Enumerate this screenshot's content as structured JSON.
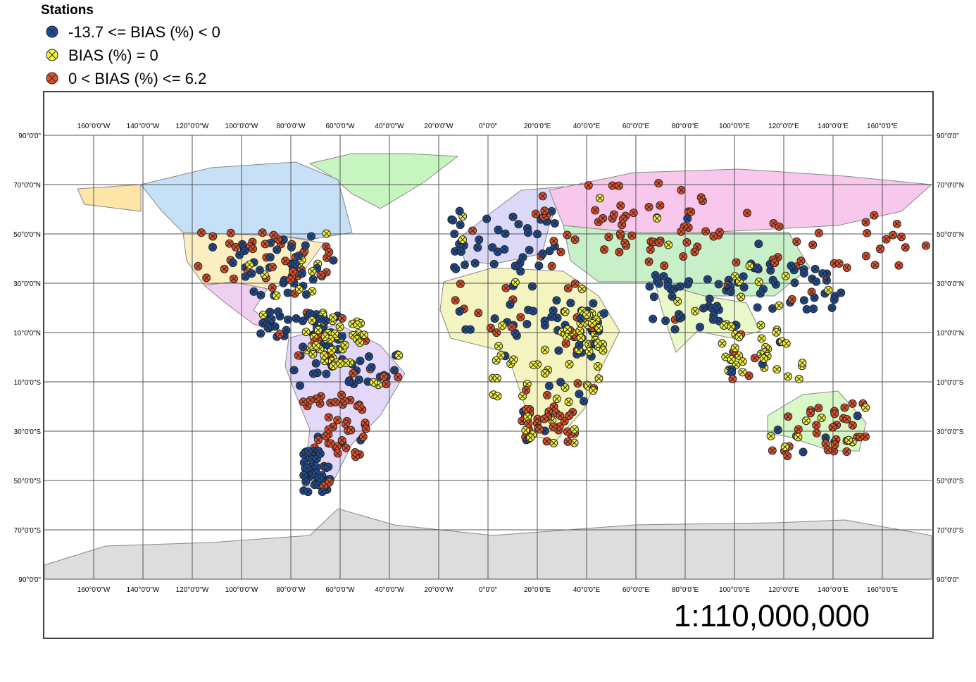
{
  "legend": {
    "title": "Stations",
    "items": [
      {
        "label": "-13.7 <= BIAS (%) < 0",
        "color": "#1f4e9c"
      },
      {
        "label": "BIAS (%) = 0",
        "color": "#f2f23a"
      },
      {
        "label": "0 < BIAS (%) <= 6.2",
        "color": "#e4502a"
      }
    ]
  },
  "graticule": {
    "longitudes": [
      {
        "value": -160,
        "label": "160°0'0\"W"
      },
      {
        "value": -140,
        "label": "140°0'0\"W"
      },
      {
        "value": -120,
        "label": "120°0'0\"W"
      },
      {
        "value": -100,
        "label": "100°0'0\"W"
      },
      {
        "value": -80,
        "label": "80°0'0\"W"
      },
      {
        "value": -60,
        "label": "60°0'0\"W"
      },
      {
        "value": -40,
        "label": "40°0'0\"W"
      },
      {
        "value": -20,
        "label": "20°0'0\"W"
      },
      {
        "value": 0,
        "label": "0°0'0\""
      },
      {
        "value": 20,
        "label": "20°0'0\"E"
      },
      {
        "value": 40,
        "label": "40°0'0\"E"
      },
      {
        "value": 60,
        "label": "60°0'0\"E"
      },
      {
        "value": 80,
        "label": "80°0'0\"E"
      },
      {
        "value": 100,
        "label": "100°0'0\"E"
      },
      {
        "value": 120,
        "label": "120°0'0\"E"
      },
      {
        "value": 140,
        "label": "140°0'0\"E"
      },
      {
        "value": 160,
        "label": "160°0'0\"E"
      }
    ],
    "latitudes": [
      {
        "value": 90,
        "label": "90°0'0\""
      },
      {
        "value": 70,
        "label": "70°0'0\"N"
      },
      {
        "value": 50,
        "label": "50°0'0\"N"
      },
      {
        "value": 30,
        "label": "30°0'0\"N"
      },
      {
        "value": 10,
        "label": "10°0'0\"N"
      },
      {
        "value": -10,
        "label": "10°0'0\"S"
      },
      {
        "value": -30,
        "label": "30°0'0\"S"
      },
      {
        "value": -50,
        "label": "50°0'0\"S"
      },
      {
        "value": -70,
        "label": "70°0'0\"S"
      },
      {
        "value": -90,
        "label": "90°0'0\""
      }
    ]
  },
  "scale": "1:110,000,000"
}
